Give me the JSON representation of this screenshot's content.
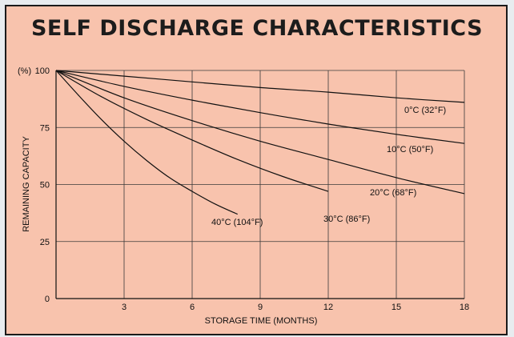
{
  "chart_data": {
    "type": "line",
    "title": "SELF DISCHARGE CHARACTERISTICS",
    "xlabel": "STORAGE TIME (MONTHS)",
    "ylabel": "REMAINING CAPACITY",
    "y_unit_label": "(%)",
    "xlim": [
      0,
      18
    ],
    "ylim": [
      0,
      100
    ],
    "x_ticks": [
      3,
      6,
      9,
      12,
      15,
      18
    ],
    "y_ticks": [
      0,
      25,
      50,
      75,
      100
    ],
    "grid": true,
    "series": [
      {
        "name": "0°C (32°F)",
        "x": [
          0,
          3,
          6,
          9,
          12,
          15,
          18
        ],
        "y": [
          100,
          97.5,
          95,
          92.5,
          90.5,
          88,
          86
        ]
      },
      {
        "name": "10°C (50°F)",
        "x": [
          0,
          3,
          6,
          9,
          12,
          15,
          18
        ],
        "y": [
          100,
          93,
          87,
          81.5,
          76.5,
          72,
          68
        ]
      },
      {
        "name": "20°C (68°F)",
        "x": [
          0,
          3,
          6,
          9,
          12,
          15,
          18
        ],
        "y": [
          100,
          88,
          78,
          69,
          61,
          53,
          46
        ]
      },
      {
        "name": "30°C (86°F)",
        "x": [
          0,
          2,
          4,
          6,
          8,
          10,
          12
        ],
        "y": [
          100,
          88.5,
          78.5,
          69.5,
          61,
          53.5,
          47
        ]
      },
      {
        "name": "40°C (104°F)",
        "x": [
          0,
          1,
          2,
          3,
          4,
          5,
          6,
          7,
          8
        ],
        "y": [
          100,
          89,
          78.5,
          69,
          60.5,
          53,
          47,
          41.5,
          37
        ]
      }
    ]
  }
}
